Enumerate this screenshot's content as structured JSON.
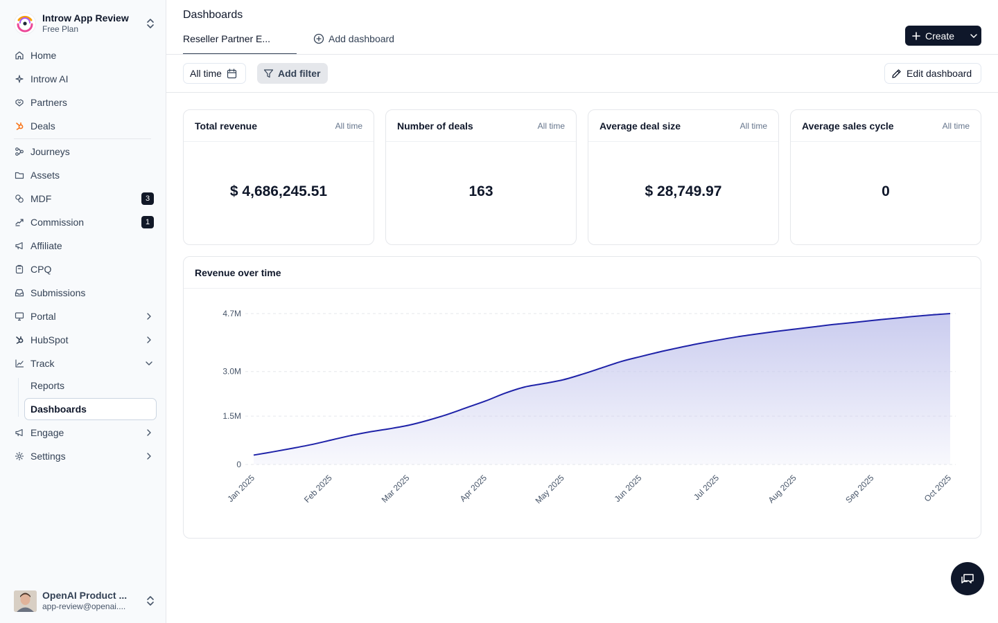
{
  "workspace": {
    "name": "Introw App Review",
    "plan": "Free Plan"
  },
  "sidebar": {
    "items": [
      {
        "label": "Home",
        "icon": "home-icon"
      },
      {
        "label": "Introw AI",
        "icon": "sparkle-icon"
      },
      {
        "label": "Partners",
        "icon": "handshake-icon"
      },
      {
        "label": "Deals",
        "icon": "hubspot-icon"
      },
      {
        "label": "Journeys",
        "icon": "workflow-icon"
      },
      {
        "label": "Assets",
        "icon": "folder-icon"
      },
      {
        "label": "MDF",
        "icon": "coins-icon",
        "badge": "3"
      },
      {
        "label": "Commission",
        "icon": "money-icon",
        "badge": "1"
      },
      {
        "label": "Affiliate",
        "icon": "megaphone-icon"
      },
      {
        "label": "CPQ",
        "icon": "clipboard-icon"
      },
      {
        "label": "Submissions",
        "icon": "inbox-icon"
      },
      {
        "label": "Portal",
        "icon": "monitor-icon"
      },
      {
        "label": "HubSpot",
        "icon": "hubspot-icon"
      },
      {
        "label": "Track",
        "icon": "chart-icon"
      },
      {
        "label": "Engage",
        "icon": "megaphone-icon"
      },
      {
        "label": "Settings",
        "icon": "gear-icon"
      }
    ],
    "sub_items": [
      {
        "label": "Reports"
      },
      {
        "label": "Dashboards"
      }
    ]
  },
  "user": {
    "name": "OpenAI Product ...",
    "email": "app-review@openai...."
  },
  "header": {
    "title": "Dashboards",
    "active_tab": "Reseller Partner E...",
    "add_tab": "Add dashboard",
    "create_label": "Create"
  },
  "filters": {
    "time": "All time",
    "add_filter": "Add filter",
    "edit": "Edit dashboard"
  },
  "kpis": [
    {
      "title": "Total revenue",
      "range": "All time",
      "value": "$ 4,686,245.51"
    },
    {
      "title": "Number of deals",
      "range": "All time",
      "value": "163"
    },
    {
      "title": "Average deal size",
      "range": "All time",
      "value": "$ 28,749.97"
    },
    {
      "title": "Average sales cycle",
      "range": "All time",
      "value": "0"
    }
  ],
  "chart": {
    "title": "Revenue over time"
  },
  "chart_data": {
    "type": "area",
    "title": "Revenue over time",
    "categories": [
      "Jan 2025",
      "Feb 2025",
      "Mar 2025",
      "Apr 2025",
      "May 2025",
      "Jun 2025",
      "Jul 2025",
      "Aug 2025",
      "Sep 2025",
      "Oct 2025"
    ],
    "x": [
      0,
      0.5,
      1,
      1.5,
      2,
      2.5,
      3,
      3.5,
      4,
      4.5,
      5,
      5.5,
      6,
      6.5,
      7,
      7.5,
      8,
      8.5,
      9,
      9.5,
      10,
      10.5,
      11,
      11.5,
      12,
      12.5,
      13,
      13.5,
      14,
      14.5,
      15,
      15.5,
      16,
      16.5,
      17,
      17.5,
      18
    ],
    "values": [
      0.4,
      0.54,
      0.69,
      0.85,
      1.04,
      1.23,
      1.39,
      1.52,
      1.67,
      1.88,
      2.13,
      2.42,
      2.71,
      3.04,
      3.3,
      3.45,
      3.61,
      3.85,
      4.12,
      4.39,
      4.6,
      4.8,
      4.98,
      5.15,
      5.3,
      5.44,
      5.56,
      5.67,
      5.77,
      5.87,
      5.97,
      6.05,
      6.14,
      6.22,
      6.3,
      6.37,
      6.43
    ],
    "y_ticks": [
      {
        "value": 0,
        "label": "0"
      },
      {
        "value": 2.06,
        "label": "1.5M"
      },
      {
        "value": 3.96,
        "label": "3.0M"
      },
      {
        "value": 6.43,
        "label": "4.7M"
      }
    ],
    "ylim": [
      0,
      6.43
    ],
    "grid": true,
    "color": "#1e22a8",
    "fill_color": "#c7c9ee"
  }
}
